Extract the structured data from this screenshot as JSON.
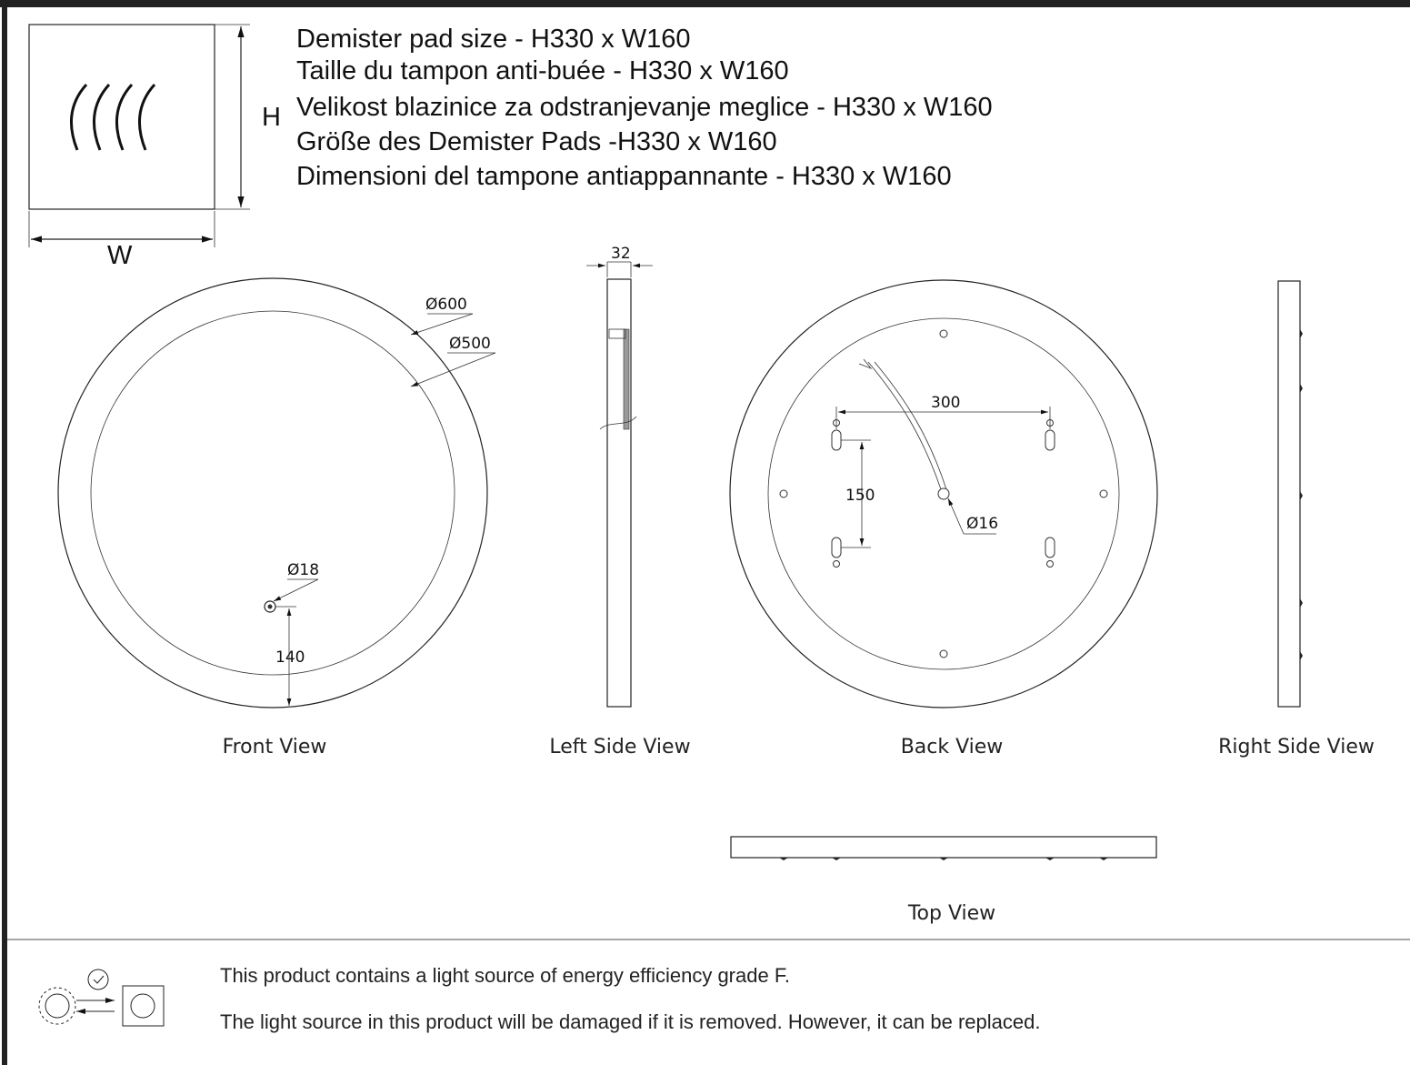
{
  "demister": {
    "lines": [
      "Demister pad size - H330 x W160",
      "Taille du tampon anti-buée - H330 x W160",
      "Velikost blazinice za odstranjevanje meglice - H330 x W160",
      "Größe des Demister Pads -H330 x W160",
      "Dimensioni del tampone antiappannante - H330 x W160"
    ],
    "h_label": "H",
    "w_label": "W"
  },
  "views": {
    "front": {
      "label": "Front View",
      "dims": [
        "Ø600",
        "Ø500",
        "Ø18",
        "140"
      ]
    },
    "left": {
      "label": "Left Side View",
      "dims": [
        "32"
      ]
    },
    "back": {
      "label": "Back View",
      "dims": [
        "300",
        "150",
        "Ø16"
      ]
    },
    "right": {
      "label": "Right Side View"
    },
    "top": {
      "label": "Top View"
    }
  },
  "footer": {
    "lines": [
      "This product contains a light source of energy efficiency grade F.",
      "The light source in this product will be damaged if it is removed. However, it can be replaced."
    ]
  }
}
